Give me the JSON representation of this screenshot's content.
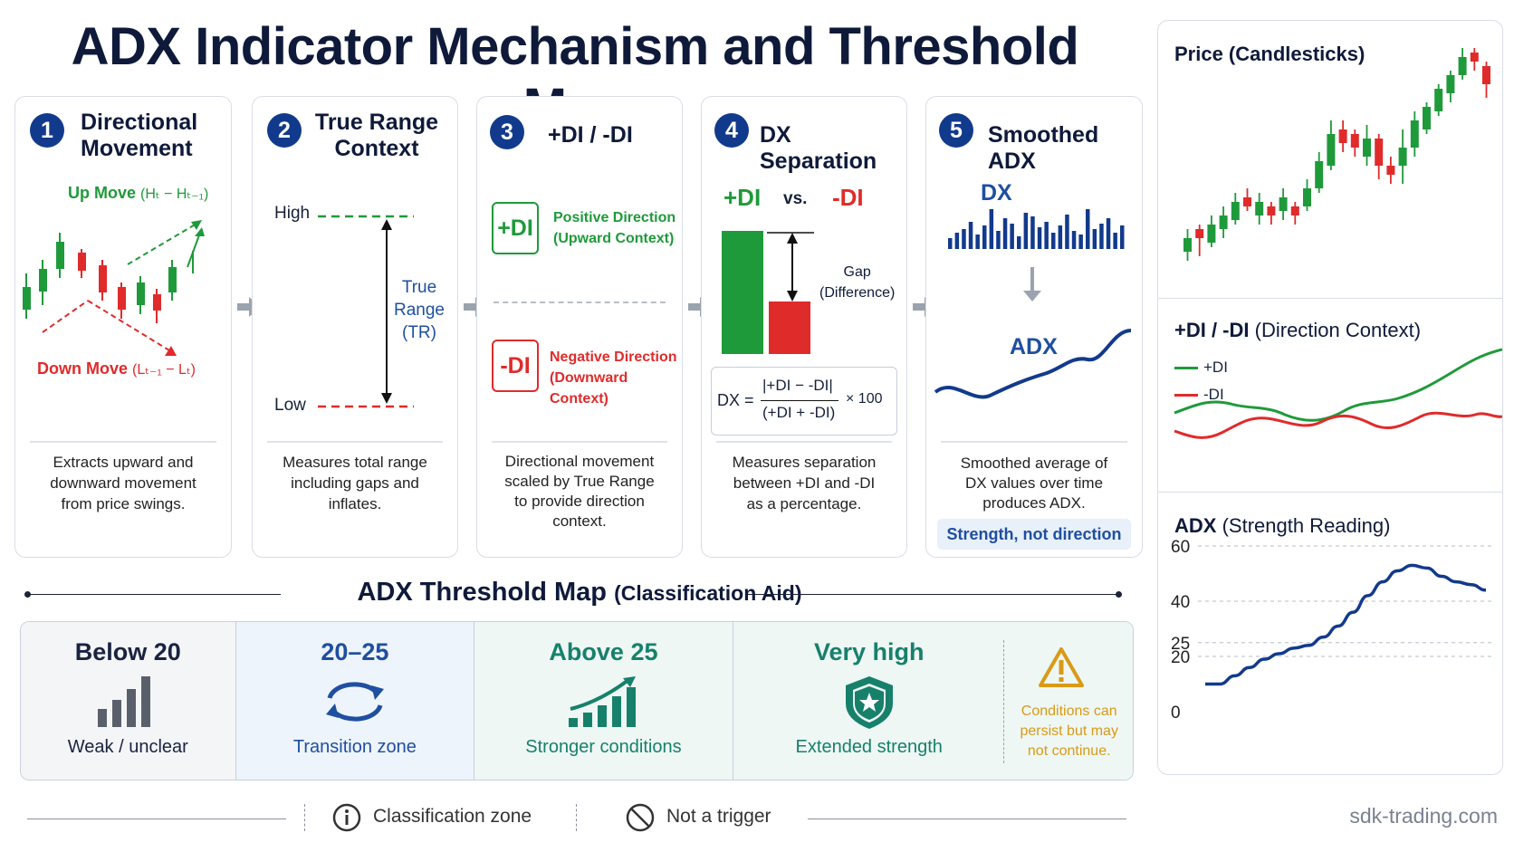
{
  "title": "ADX Indicator Mechanism and Threshold Map",
  "steps": [
    {
      "num": "1",
      "title_l1": "Directional",
      "title_l2": "Movement",
      "desc_l1": "Extracts upward and",
      "desc_l2": "downward movement",
      "desc_l3": "from price swings.",
      "up_label": "Up Move",
      "up_formula": "(Hₜ − Hₜ₋₁)",
      "down_label": "Down Move",
      "down_formula": "(Lₜ₋₁ − Lₜ)"
    },
    {
      "num": "2",
      "title_l1": "True Range",
      "title_l2": "Context",
      "desc_l1": "Measures total range",
      "desc_l2": "including gaps and",
      "desc_l3": "inflates.",
      "high": "High",
      "low": "Low",
      "tr_l1": "True",
      "tr_l2": "Range",
      "tr_l3": "(TR)"
    },
    {
      "num": "3",
      "title_l1": "+DI / -DI",
      "desc_l1": "Directional movement",
      "desc_l2": "scaled by True Range",
      "desc_l3": "to provide direction",
      "desc_l4": "context.",
      "pos_badge": "+DI",
      "pos_l1": "Positive Direction",
      "pos_l2": "(Upward Context)",
      "neg_badge": "-DI",
      "neg_l1": "Negative Direction",
      "neg_l2": "(Downward Context)"
    },
    {
      "num": "4",
      "title_l1": "DX Separation",
      "desc_l1": "Measures separation",
      "desc_l2": "between +DI and -DI",
      "desc_l3": "as a percentage.",
      "plus": "+DI",
      "vs": "vs.",
      "minus": "-DI",
      "gap_l1": "Gap",
      "gap_l2": "(Difference)",
      "f_dx": "DX =",
      "f_num": "|+DI − -DI|",
      "f_den": "(+DI + -DI)",
      "f_mult": "× 100"
    },
    {
      "num": "5",
      "title_l1": "Smoothed ADX",
      "desc_l1": "Smoothed average of",
      "desc_l2": "DX values over time",
      "desc_l3": "produces ADX.",
      "dx": "DX",
      "adx": "ADX",
      "badge": "Strength, not direction"
    }
  ],
  "threshold_map": {
    "title": "ADX Threshold Map",
    "subtitle": "(Classification Aid)",
    "zones": [
      {
        "label": "Below 20",
        "desc": "Weak / unclear",
        "color": "#1a2340",
        "bg": "#f4f5f7"
      },
      {
        "label": "20–25",
        "desc": "Transition zone",
        "color": "#1f4fa0",
        "bg": "#eef4fb"
      },
      {
        "label": "Above 25",
        "desc": "Stronger conditions",
        "color": "#17806b",
        "bg": "#eef7f4"
      },
      {
        "label": "Very high",
        "desc": "Extended strength",
        "color": "#17806b",
        "bg": "#eef7f4"
      }
    ],
    "caution": {
      "l1": "Conditions can",
      "l2": "persist but may",
      "l3": "not continue.",
      "color": "#d99a16"
    }
  },
  "legend": {
    "classification": "Classification zone",
    "not_trigger": "Not a trigger"
  },
  "panels": {
    "price": {
      "title": "Price (Candlesticks)"
    },
    "di": {
      "title": "+DI / -DI",
      "title_note": "(Direction Context)",
      "plus": "+DI",
      "minus": "-DI"
    },
    "adx": {
      "title": "ADX",
      "title_note": "(Strength Reading)",
      "ticks": [
        "60",
        "40",
        "25",
        "20",
        "0"
      ]
    }
  },
  "colors": {
    "up": "#1f9a3a",
    "down": "#e02b2b",
    "navy": "#123a8c",
    "blue": "#1f4fa0"
  },
  "watermark": "sdk-trading.com",
  "chart_data": [
    {
      "type": "candlestick",
      "title": "Price (Candlesticks)"
    },
    {
      "type": "line",
      "title": "+DI / -DI (Direction Context)",
      "series": [
        {
          "name": "+DI"
        },
        {
          "name": "-DI"
        }
      ]
    },
    {
      "type": "line",
      "title": "ADX (Strength Reading)",
      "yticks": [
        0,
        20,
        25,
        40,
        60
      ],
      "series": [
        {
          "name": "ADX",
          "values": [
            10,
            10,
            13,
            16,
            19,
            21,
            23,
            24,
            27,
            31,
            36,
            42,
            47,
            51,
            53,
            52,
            49,
            47,
            46,
            44
          ]
        }
      ]
    }
  ]
}
